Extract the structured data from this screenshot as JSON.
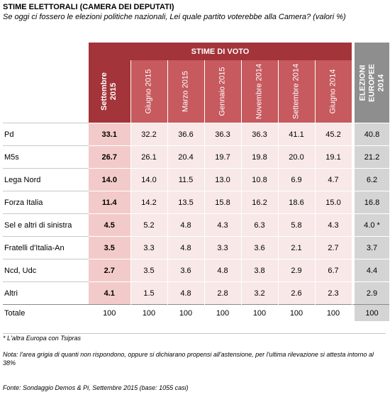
{
  "title": "STIME ELETTORALI (CAMERA DEI DEPUTATI)",
  "subtitle": "Se oggi ci fossero le elezioni politiche nazionali, Lei quale partito voterebbe alla Camera? (valori %)",
  "band_label": "STIME DI VOTO",
  "eu_label": "ELEZIONI EUROPEE 2014",
  "columns": [
    "Settembre 2015",
    "Giugno 2015",
    "Marzo 2015",
    "Gennaio 2015",
    "Novembre 2014",
    "Settembre 2014",
    "Giugno 2014"
  ],
  "colors": {
    "header_dark": "#a3343a",
    "header_light": "#c65a5e",
    "first_col": "#f3caca",
    "cells": "#f8e8e8",
    "eu_gray": "#d4d4d4"
  },
  "chart_data": {
    "type": "table",
    "rows": [
      {
        "party": "Pd",
        "values": [
          "33.1",
          "32.2",
          "36.6",
          "36.3",
          "36.3",
          "41.1",
          "45.2"
        ],
        "eu": "40.8"
      },
      {
        "party": "M5s",
        "values": [
          "26.7",
          "26.1",
          "20.4",
          "19.7",
          "19.8",
          "20.0",
          "19.1"
        ],
        "eu": "21.2"
      },
      {
        "party": "Lega Nord",
        "values": [
          "14.0",
          "14.0",
          "11.5",
          "13.0",
          "10.8",
          "6.9",
          "4.7"
        ],
        "eu": "6.2"
      },
      {
        "party": "Forza Italia",
        "values": [
          "11.4",
          "14.2",
          "13.5",
          "15.8",
          "16.2",
          "18.6",
          "15.0"
        ],
        "eu": "16.8"
      },
      {
        "party": "Sel e altri di sinistra",
        "values": [
          "4.5",
          "5.2",
          "4.8",
          "4.3",
          "6.3",
          "5.8",
          "4.3"
        ],
        "eu": "4.0 *"
      },
      {
        "party": "Fratelli d'Italia-An",
        "values": [
          "3.5",
          "3.3",
          "4.8",
          "3.3",
          "3.6",
          "2.1",
          "2.7"
        ],
        "eu": "3.7"
      },
      {
        "party": "Ncd, Udc",
        "values": [
          "2.7",
          "3.5",
          "3.6",
          "4.8",
          "3.8",
          "2.9",
          "6.7"
        ],
        "eu": "4.4"
      },
      {
        "party": "Altri",
        "values": [
          "4.1",
          "1.5",
          "4.8",
          "2.8",
          "3.2",
          "2.6",
          "2.3"
        ],
        "eu": "2.9"
      }
    ],
    "total": {
      "label": "Totale",
      "values": [
        "100",
        "100",
        "100",
        "100",
        "100",
        "100",
        "100"
      ],
      "eu": "100"
    }
  },
  "footnote": "* L'altra Europa con Tsipras",
  "nota": "Nota: l'area grigia di quanti non rispondono, oppure si dichiarano propensi all'astensione, per l'ultima rilevazione si attesta intorno al 38%",
  "fonte": "Fonte: Sondaggio Demos & Pi, Settembre 2015 (base: 1055 casi)"
}
